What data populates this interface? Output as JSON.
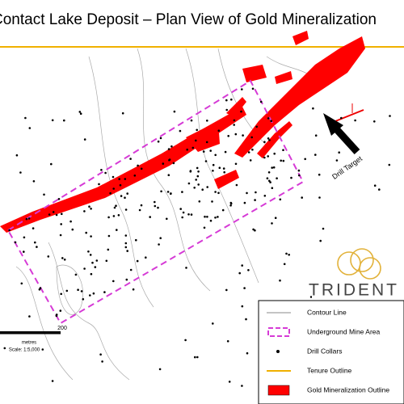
{
  "header": {
    "title": "Contact Lake Deposit – Plan View of Gold Mineralization"
  },
  "annotations": {
    "drill_target": "Drill Target"
  },
  "logo": {
    "text": "TRIDENT"
  },
  "legend": {
    "items": [
      "Contour Line",
      "Underground Mine Area",
      "Drill Collars",
      "Tenure Outline",
      "Gold Mineralization Outline"
    ]
  },
  "scale": {
    "tick": "200",
    "unit": "metres",
    "ratio": "Scale: 1:5,000"
  }
}
